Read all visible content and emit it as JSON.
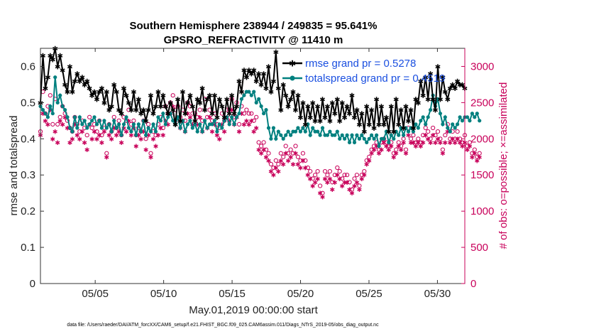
{
  "chart_data": {
    "type": "line",
    "title_line1": "Southern Hemisphere 238944 / 249835 = 95.641%",
    "title_line2": "GPSRO_REFRACTIVITY @ 11410 m",
    "xlabel": "May.01,2019 00:00:00 start",
    "ylabel_left": "rmse and totalspread",
    "ylabel_right": "# of obs: o=possible; ×=assimilated",
    "x_range_days": [
      1,
      32
    ],
    "x_ticks": [
      {
        "day": 5,
        "label": "05/05"
      },
      {
        "day": 10,
        "label": "05/10"
      },
      {
        "day": 15,
        "label": "05/15"
      },
      {
        "day": 20,
        "label": "05/20"
      },
      {
        "day": 25,
        "label": "05/25"
      },
      {
        "day": 30,
        "label": "05/30"
      }
    ],
    "ylim_left": [
      0,
      0.65
    ],
    "ylim_right": [
      0,
      3250
    ],
    "yticks_left": [
      "0",
      "0.1",
      "0.2",
      "0.3",
      "0.4",
      "0.5",
      "0.6"
    ],
    "yticks_right": [
      "0",
      "500",
      "1000",
      "1500",
      "2000",
      "2500",
      "3000"
    ],
    "legend_placement": "top-right",
    "grid": false,
    "colors": {
      "rmse": "#000000",
      "totalspread": "#00807f",
      "obs": "#c8005a",
      "legend_text": "#1a4fe0"
    },
    "series": [
      {
        "name": "rmse grand pr = 0.5278",
        "values": [
          0.5,
          0.63,
          0.54,
          0.57,
          0.63,
          0.62,
          0.65,
          0.6,
          0.63,
          0.59,
          0.55,
          0.53,
          0.6,
          0.53,
          0.56,
          0.58,
          0.56,
          0.57,
          0.55,
          0.56,
          0.54,
          0.52,
          0.53,
          0.51,
          0.53,
          0.54,
          0.5,
          0.53,
          0.48,
          0.49,
          0.55,
          0.53,
          0.48,
          0.47,
          0.54,
          0.52,
          0.5,
          0.48,
          0.53,
          0.48,
          0.51,
          0.47,
          0.48,
          0.45,
          0.48,
          0.52,
          0.47,
          0.49,
          0.53,
          0.49,
          0.52,
          0.49,
          0.47,
          0.5,
          0.48,
          0.44,
          0.51,
          0.45,
          0.53,
          0.47,
          0.5,
          0.52,
          0.49,
          0.45,
          0.51,
          0.5,
          0.54,
          0.48,
          0.51,
          0.52,
          0.47,
          0.52,
          0.46,
          0.51,
          0.49,
          0.46,
          0.51,
          0.47,
          0.52,
          0.47,
          0.49,
          0.56,
          0.53,
          0.59,
          0.57,
          0.59,
          0.58,
          0.59,
          0.56,
          0.58,
          0.55,
          0.58,
          0.54,
          0.6,
          0.53,
          0.56,
          0.64,
          0.54,
          0.48,
          0.55,
          0.52,
          0.49,
          0.51,
          0.53,
          0.48,
          0.52,
          0.46,
          0.5,
          0.44,
          0.49,
          0.46,
          0.5,
          0.45,
          0.49,
          0.45,
          0.51,
          0.46,
          0.49,
          0.45,
          0.5,
          0.47,
          0.51,
          0.45,
          0.5,
          0.46,
          0.49,
          0.47,
          0.52,
          0.46,
          0.48,
          0.44,
          0.47,
          0.42,
          0.49,
          0.44,
          0.48,
          0.43,
          0.51,
          0.44,
          0.49,
          0.44,
          0.46,
          0.42,
          0.49,
          0.42,
          0.51,
          0.44,
          0.48,
          0.43,
          0.49,
          0.45,
          0.48,
          0.43,
          0.51,
          0.5,
          0.56,
          0.52,
          0.57,
          0.51,
          0.58,
          0.51,
          0.48,
          0.6,
          0.51,
          0.57,
          0.53,
          0.51,
          0.54,
          0.55,
          0.54,
          0.56,
          0.55,
          0.55,
          0.54
        ]
      },
      {
        "name": "totalspread grand pr = 0.4519",
        "values": [
          0.49,
          0.48,
          0.47,
          0.46,
          0.49,
          0.47,
          0.57,
          0.5,
          0.52,
          0.49,
          0.48,
          0.46,
          0.43,
          0.42,
          0.46,
          0.43,
          0.46,
          0.44,
          0.45,
          0.43,
          0.44,
          0.45,
          0.46,
          0.44,
          0.45,
          0.43,
          0.45,
          0.43,
          0.44,
          0.42,
          0.45,
          0.43,
          0.44,
          0.41,
          0.44,
          0.46,
          0.43,
          0.42,
          0.44,
          0.41,
          0.44,
          0.42,
          0.45,
          0.41,
          0.43,
          0.42,
          0.44,
          0.42,
          0.46,
          0.45,
          0.47,
          0.44,
          0.46,
          0.47,
          0.45,
          0.44,
          0.46,
          0.43,
          0.45,
          0.42,
          0.44,
          0.45,
          0.43,
          0.44,
          0.42,
          0.44,
          0.42,
          0.45,
          0.43,
          0.44,
          0.44,
          0.45,
          0.42,
          0.44,
          0.43,
          0.45,
          0.46,
          0.44,
          0.46,
          0.44,
          0.46,
          0.47,
          0.51,
          0.52,
          0.53,
          0.53,
          0.52,
          0.53,
          0.5,
          0.51,
          0.49,
          0.47,
          0.48,
          0.43,
          0.4,
          0.43,
          0.4,
          0.42,
          0.41,
          0.4,
          0.41,
          0.42,
          0.41,
          0.42,
          0.42,
          0.43,
          0.42,
          0.43,
          0.42,
          0.44,
          0.41,
          0.43,
          0.42,
          0.42,
          0.41,
          0.43,
          0.41,
          0.41,
          0.42,
          0.41,
          0.41,
          0.42,
          0.4,
          0.41,
          0.4,
          0.41,
          0.39,
          0.41,
          0.39,
          0.41,
          0.4,
          0.41,
          0.4,
          0.39,
          0.4,
          0.41,
          0.4,
          0.41,
          0.38,
          0.4,
          0.4,
          0.42,
          0.39,
          0.41,
          0.4,
          0.42,
          0.41,
          0.43,
          0.41,
          0.43,
          0.42,
          0.43,
          0.42,
          0.44,
          0.43,
          0.45,
          0.46,
          0.44,
          0.46,
          0.48,
          0.52,
          0.49,
          0.51,
          0.47,
          0.44,
          0.46,
          0.43,
          0.42,
          0.44,
          0.43,
          0.44,
          0.46,
          0.45,
          0.46,
          0.46,
          0.45,
          0.47,
          0.46,
          0.47,
          0.45
        ]
      },
      {
        "name": "possible",
        "values": [
          2100,
          2650,
          2350,
          2450,
          2600,
          2200,
          2550,
          2200,
          2300,
          2450,
          2350,
          2250,
          2150,
          2100,
          2300,
          2200,
          2100,
          2250,
          2150,
          2050,
          2300,
          2150,
          2200,
          2100,
          2250,
          2050,
          2150,
          1800,
          2200,
          2100,
          2300,
          2150,
          2250,
          2050,
          2300,
          2250,
          2400,
          2200,
          2250,
          2050,
          2150,
          2100,
          2250,
          2000,
          2200,
          1800,
          2100,
          2050,
          2200,
          2300,
          2150,
          2450,
          2350,
          2500,
          2600,
          2400,
          2450,
          2300,
          2400,
          2250,
          2500,
          2450,
          2350,
          2350,
          2300,
          2400,
          2250,
          2550,
          2300,
          2400,
          2250,
          2350,
          2200,
          2150,
          2350,
          2250,
          2400,
          2400,
          2550,
          2300,
          2500,
          2200,
          2450,
          2350,
          2400,
          2350,
          2350,
          2250,
          2300,
          1950,
          1900,
          1950,
          1850,
          1800,
          1650,
          1600,
          1700,
          1650,
          1800,
          1750,
          1900,
          1800,
          1850,
          1800,
          1900,
          1750,
          1700,
          1800,
          1700,
          1600,
          1550,
          1450,
          1500,
          1550,
          1350,
          1250,
          1550,
          1500,
          1550,
          1400,
          1500,
          1600,
          1550,
          1450,
          1500,
          1500,
          1400,
          1300,
          1450,
          1500,
          1350,
          1500,
          1550,
          1700,
          1750,
          1850,
          1900,
          1950,
          1850,
          1950,
          2000,
          1950,
          1900,
          1950,
          1800,
          1850,
          1950,
          1900,
          2000,
          1850,
          2150,
          2000,
          2050,
          1950,
          2000,
          1950,
          2050,
          2150,
          2100,
          2000,
          2150,
          2050,
          2100,
          2000,
          1850,
          2050,
          2200,
          2000,
          2100,
          2000,
          2100,
          2000,
          1950,
          2050,
          1900,
          1950,
          1800,
          1850,
          1750,
          1800
        ]
      },
      {
        "name": "assimilated",
        "values": [
          2050,
          2350,
          2250,
          2200,
          2400,
          2000,
          2100,
          1950,
          2250,
          2200,
          2300,
          2150,
          1950,
          2000,
          2200,
          2050,
          2000,
          2100,
          1950,
          1850,
          2200,
          2000,
          2100,
          2000,
          2050,
          1950,
          2100,
          1750,
          2050,
          2000,
          2150,
          2050,
          2100,
          1950,
          2150,
          2100,
          2250,
          2050,
          2150,
          1900,
          2050,
          2000,
          2100,
          1850,
          2050,
          1750,
          2000,
          1900,
          2050,
          2150,
          2050,
          2250,
          2200,
          2350,
          2450,
          2250,
          2300,
          2150,
          2250,
          2100,
          2350,
          2300,
          2200,
          2250,
          2200,
          2300,
          2100,
          2400,
          2150,
          2300,
          2100,
          2200,
          2050,
          2000,
          2200,
          2100,
          2300,
          2250,
          2400,
          2200,
          2300,
          2100,
          2350,
          2200,
          2250,
          2200,
          2250,
          2100,
          2150,
          1850,
          1800,
          1850,
          1750,
          1700,
          1550,
          1500,
          1600,
          1550,
          1700,
          1650,
          1800,
          1700,
          1750,
          1650,
          1800,
          1650,
          1600,
          1700,
          1600,
          1500,
          1450,
          1350,
          1400,
          1450,
          1250,
          1200,
          1450,
          1400,
          1450,
          1300,
          1400,
          1500,
          1450,
          1350,
          1400,
          1400,
          1300,
          1250,
          1350,
          1400,
          1300,
          1450,
          1500,
          1650,
          1700,
          1800,
          1850,
          1900,
          1800,
          1850,
          1950,
          1900,
          1850,
          1900,
          1750,
          1800,
          1900,
          1850,
          1950,
          1800,
          2050,
          1950,
          1950,
          1900,
          1950,
          1900,
          1950,
          2050,
          2000,
          1950,
          2050,
          1950,
          2000,
          1950,
          1800,
          1950,
          2100,
          1950,
          2000,
          1950,
          2000,
          1950,
          1900,
          1950,
          1850,
          1900,
          1750,
          1800,
          1700,
          1750
        ]
      }
    ],
    "legend": [
      {
        "label": "rmse grand pr = 0.5278",
        "series": "rmse"
      },
      {
        "label": "totalspread grand pr = 0.4519",
        "series": "totalspread"
      }
    ],
    "footer": "data file: /Users/raeder/DAI/ATM_forcXX/CAM6_setup/f.e21.FHIST_BGC.f09_025.CAM6assim.011/Diags_NTrS_2019-05/obs_diag_output.nc"
  }
}
